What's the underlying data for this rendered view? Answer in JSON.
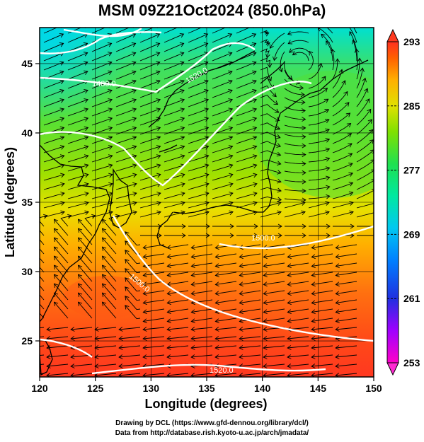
{
  "title": "MSM 09Z21Oct2024 (850.0hPa)",
  "credits": {
    "line1": "Drawing by DCL (https://www.gfd-dennou.org/library/dcl/)",
    "line2": "Data from http://database.rish.kyoto-u.ac.jp/arch/jmadata/"
  },
  "map": {
    "xlabel": "Longitude (degrees)",
    "ylabel": "Latitude  (degrees)",
    "xlim": [
      120,
      150
    ],
    "ylim": [
      22.4,
      47.6
    ],
    "xticks": [
      "120",
      "125",
      "130",
      "135",
      "140",
      "145",
      "150"
    ],
    "yticks": [
      "25",
      "30",
      "35",
      "40",
      "45"
    ],
    "contour_labels": [
      "1480.0",
      "1520.0",
      "1500.0",
      "1500.0",
      "1520.0"
    ],
    "colorbar": {
      "tick_labels": [
        "293",
        "285",
        "277",
        "269",
        "261",
        "253"
      ],
      "min": 253,
      "max": 293,
      "colors": [
        "#ff00c8",
        "#c000ff",
        "#6020ff",
        "#0040ff",
        "#0090ff",
        "#00d0ff",
        "#00e8c0",
        "#20e070",
        "#40e020",
        "#a0e000",
        "#e8e000",
        "#ffc000",
        "#ff8000",
        "#ff4010"
      ]
    }
  }
}
